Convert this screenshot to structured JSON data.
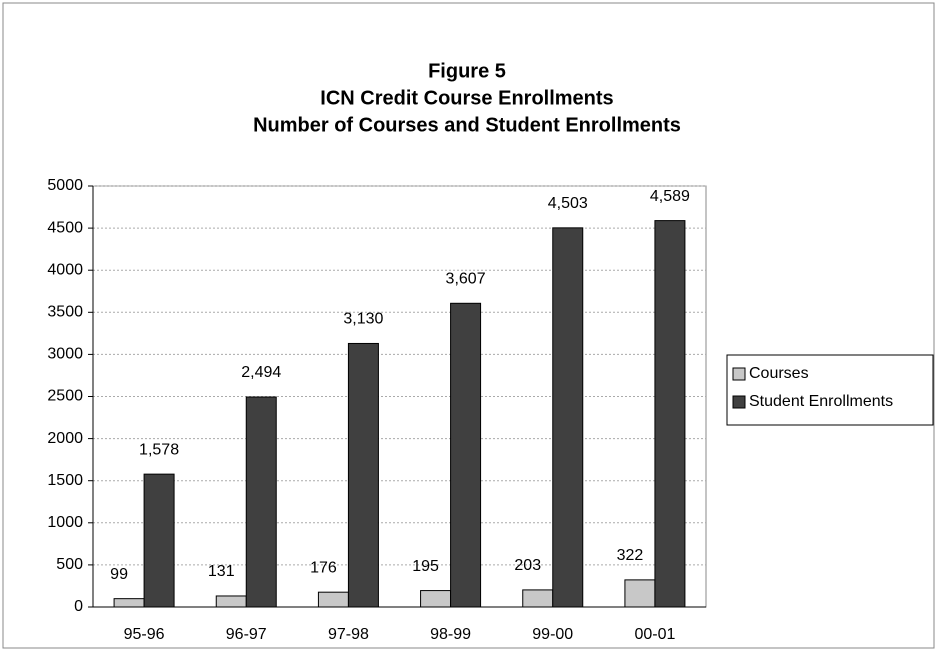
{
  "chart_data": {
    "type": "bar",
    "title": "Figure 5",
    "subtitle": [
      "ICN Credit Course Enrollments",
      "Number of Courses and Student Enrollments"
    ],
    "categories": [
      "95-96",
      "96-97",
      "97-98",
      "98-99",
      "99-00",
      "00-01"
    ],
    "series": [
      {
        "name": "Courses",
        "color": "#c8c8c8",
        "values": [
          99,
          131,
          176,
          195,
          203,
          322
        ]
      },
      {
        "name": "Student Enrollments",
        "color": "#404040",
        "values": [
          1578,
          2494,
          3130,
          3607,
          4503,
          4589
        ],
        "value_labels": [
          "1,578",
          "2,494",
          "3,130",
          "3,607",
          "4,503",
          "4,589"
        ]
      }
    ],
    "ylim": [
      0,
      5000
    ],
    "yticks": [
      0,
      500,
      1000,
      1500,
      2000,
      2500,
      3000,
      3500,
      4000,
      4500,
      5000
    ],
    "grid": true,
    "legend": "right"
  }
}
